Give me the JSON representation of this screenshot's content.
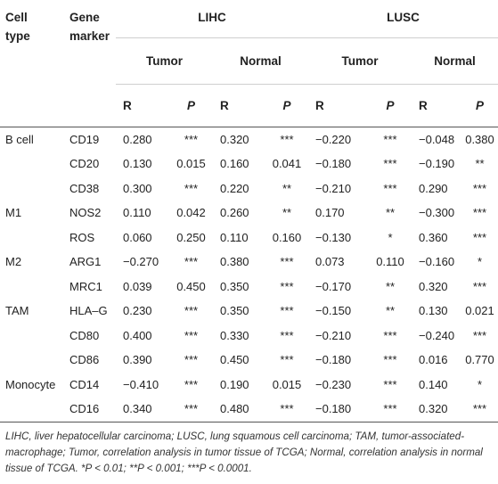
{
  "headers": {
    "cell_type": [
      "Cell",
      "type"
    ],
    "gene_marker": [
      "Gene",
      "marker"
    ],
    "lihc": "LIHC",
    "lusc": "LUSC",
    "tumor": "Tumor",
    "normal": "Normal",
    "r": "R",
    "p": "P"
  },
  "rows": [
    {
      "cell": "B cell",
      "gene": "CD19",
      "v": [
        "0.280",
        "***",
        "0.320",
        "***",
        "−0.220",
        "***",
        "−0.048",
        "0.380"
      ]
    },
    {
      "cell": "",
      "gene": "CD20",
      "v": [
        "0.130",
        "0.015",
        "0.160",
        "0.041",
        "−0.180",
        "***",
        "−0.190",
        "**"
      ]
    },
    {
      "cell": "",
      "gene": "CD38",
      "v": [
        "0.300",
        "***",
        "0.220",
        "**",
        "−0.210",
        "***",
        "0.290",
        "***"
      ]
    },
    {
      "cell": "M1",
      "gene": "NOS2",
      "v": [
        "0.110",
        "0.042",
        "0.260",
        "**",
        "0.170",
        "**",
        "−0.300",
        "***"
      ]
    },
    {
      "cell": "",
      "gene": "ROS",
      "v": [
        "0.060",
        "0.250",
        "0.110",
        "0.160",
        "−0.130",
        "*",
        "0.360",
        "***"
      ]
    },
    {
      "cell": "M2",
      "gene": "ARG1",
      "v": [
        "−0.270",
        "***",
        "0.380",
        "***",
        "0.073",
        "0.110",
        "−0.160",
        "*"
      ]
    },
    {
      "cell": "",
      "gene": "MRC1",
      "v": [
        "0.039",
        "0.450",
        "0.350",
        "***",
        "−0.170",
        "**",
        "0.320",
        "***"
      ]
    },
    {
      "cell": "TAM",
      "gene": "HLA–G",
      "v": [
        "0.230",
        "***",
        "0.350",
        "***",
        "−0.150",
        "**",
        "0.130",
        "0.021"
      ]
    },
    {
      "cell": "",
      "gene": "CD80",
      "v": [
        "0.400",
        "***",
        "0.330",
        "***",
        "−0.210",
        "***",
        "−0.240",
        "***"
      ]
    },
    {
      "cell": "",
      "gene": "CD86",
      "v": [
        "0.390",
        "***",
        "0.450",
        "***",
        "−0.180",
        "***",
        "0.016",
        "0.770"
      ]
    },
    {
      "cell": "Monocyte",
      "gene": "CD14",
      "v": [
        "−0.410",
        "***",
        "0.190",
        "0.015",
        "−0.230",
        "***",
        "0.140",
        "*"
      ]
    },
    {
      "cell": "",
      "gene": "CD16",
      "v": [
        "0.340",
        "***",
        "0.480",
        "***",
        "−0.180",
        "***",
        "0.320",
        "***"
      ]
    }
  ],
  "caption": "LIHC, liver hepatocellular carcinoma; LUSC, lung squamous cell carcinoma; TAM, tumor-associated-macrophage; Tumor, correlation analysis in tumor tissue of TCGA; Normal, correlation analysis in normal tissue of TCGA. *P < 0.01; **P < 0.001; ***P < 0.0001."
}
